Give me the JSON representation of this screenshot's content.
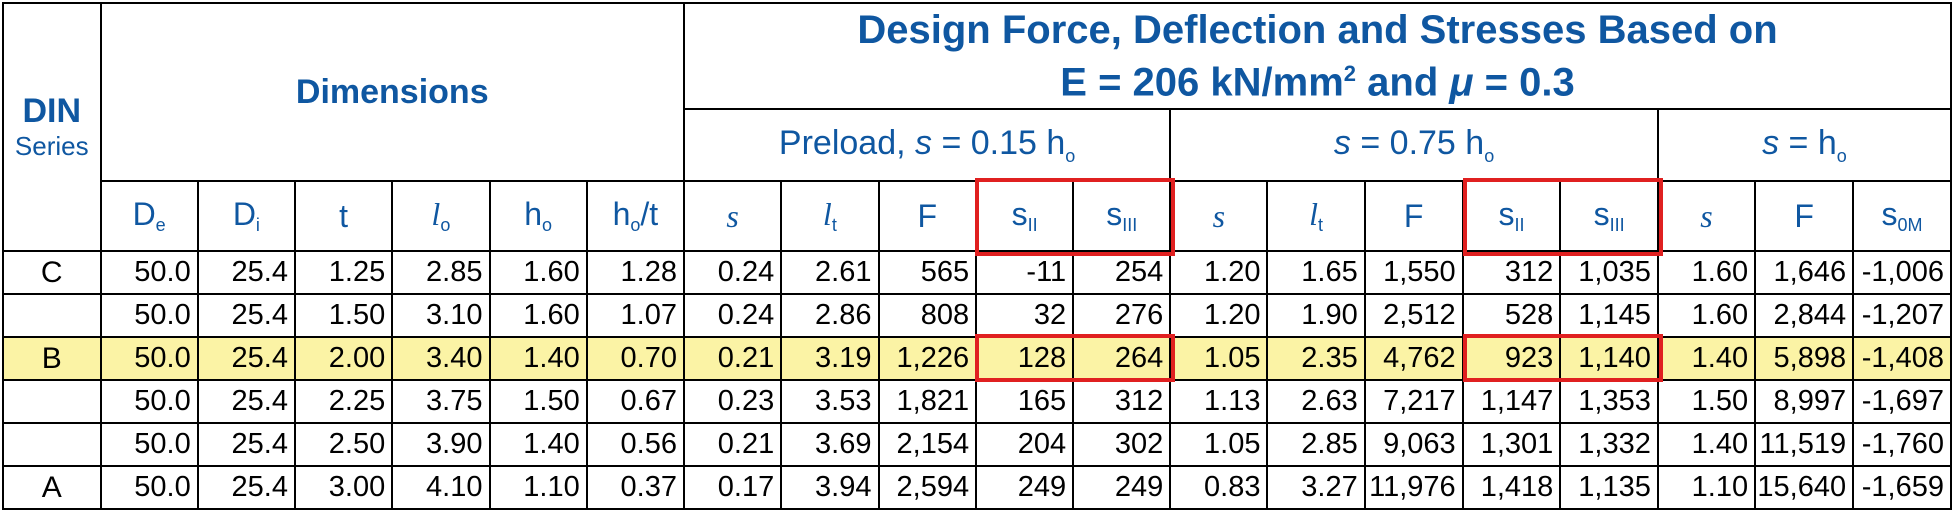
{
  "header": {
    "din": "DIN",
    "series": "Series",
    "dimensions": "Dimensions",
    "title_line1": "Design Force, Deflection and Stresses Based on",
    "title_line2_a": "E = 206 kN/mm",
    "title_line2_sup": "2",
    "title_line2_b": " and ",
    "title_line2_mu": "μ",
    "title_line2_c": " = 0.3",
    "preload_a": "Preload, ",
    "preload_s": "s",
    "preload_b": " = 0.15 h",
    "preload_sub": "o",
    "g2_s": "s",
    "g2_b": " = 0.75 h",
    "g2_sub": "o",
    "g3_s": "s",
    "g3_b": " = h",
    "g3_sub": "o"
  },
  "columns": {
    "De": {
      "base": "D",
      "sub": "e"
    },
    "Di": {
      "base": "D",
      "sub": "i"
    },
    "t": "t",
    "lo": {
      "base": "l",
      "sub": "o"
    },
    "ho": {
      "base": "h",
      "sub": "o"
    },
    "hot": {
      "base": "h",
      "sub": "o",
      "tail": "/t"
    },
    "s": "s",
    "lt": {
      "base": "l",
      "sub": "t"
    },
    "F": "F",
    "sII": {
      "base": "s",
      "sub": "II"
    },
    "sIII": {
      "base": "s",
      "sub": "III"
    },
    "s0M": {
      "base": "s",
      "sub": "0M"
    }
  },
  "rows": [
    {
      "series": "C",
      "cells": [
        "50.0",
        "25.4",
        "1.25",
        "2.85",
        "1.60",
        "1.28",
        "0.24",
        "2.61",
        "565",
        "-11",
        "254",
        "1.20",
        "1.65",
        "1,550",
        "312",
        "1,035",
        "1.60",
        "1,646",
        "-1,006"
      ]
    },
    {
      "series": "",
      "cells": [
        "50.0",
        "25.4",
        "1.50",
        "3.10",
        "1.60",
        "1.07",
        "0.24",
        "2.86",
        "808",
        "32",
        "276",
        "1.20",
        "1.90",
        "2,512",
        "528",
        "1,145",
        "1.60",
        "2,844",
        "-1,207"
      ]
    },
    {
      "series": "B",
      "cells": [
        "50.0",
        "25.4",
        "2.00",
        "3.40",
        "1.40",
        "0.70",
        "0.21",
        "3.19",
        "1,226",
        "128",
        "264",
        "1.05",
        "2.35",
        "4,762",
        "923",
        "1,140",
        "1.40",
        "5,898",
        "-1,408"
      ]
    },
    {
      "series": "",
      "cells": [
        "50.0",
        "25.4",
        "2.25",
        "3.75",
        "1.50",
        "0.67",
        "0.23",
        "3.53",
        "1,821",
        "165",
        "312",
        "1.13",
        "2.63",
        "7,217",
        "1,147",
        "1,353",
        "1.50",
        "8,997",
        "-1,697"
      ]
    },
    {
      "series": "",
      "cells": [
        "50.0",
        "25.4",
        "2.50",
        "3.90",
        "1.40",
        "0.56",
        "0.21",
        "3.69",
        "2,154",
        "204",
        "302",
        "1.05",
        "2.85",
        "9,063",
        "1,301",
        "1,332",
        "1.40",
        "11,519",
        "-1,760"
      ]
    },
    {
      "series": "A",
      "cells": [
        "50.0",
        "25.4",
        "3.00",
        "4.10",
        "1.10",
        "0.37",
        "0.17",
        "3.94",
        "2,594",
        "249",
        "249",
        "0.83",
        "3.27",
        "11,976",
        "1,418",
        "1,135",
        "1.10",
        "15,640",
        "-1,659"
      ]
    }
  ],
  "highlight_row_color": "#fbf3a5",
  "accent_color": "#0f57a1",
  "highlight_box_color": "#e02020"
}
